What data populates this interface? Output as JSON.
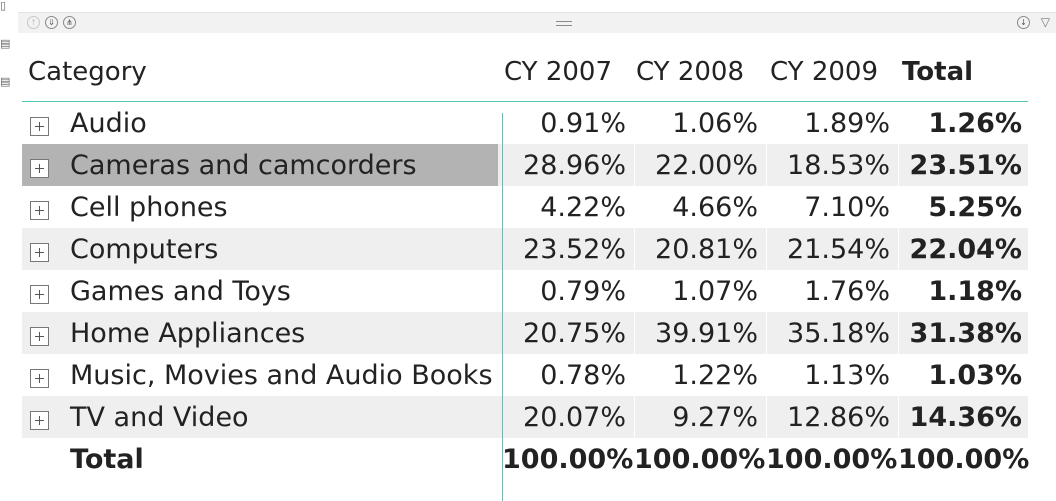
{
  "matrix": {
    "header": {
      "category": "Category",
      "columns": [
        "CY 2007",
        "CY 2008",
        "CY 2009"
      ],
      "total": "Total"
    },
    "rows": [
      {
        "label": "Audio",
        "values": [
          "0.91%",
          "1.06%",
          "1.89%"
        ],
        "total": "1.26%"
      },
      {
        "label": "Cameras and camcorders",
        "values": [
          "28.96%",
          "22.00%",
          "18.53%"
        ],
        "total": "23.51%"
      },
      {
        "label": "Cell phones",
        "values": [
          "4.22%",
          "4.66%",
          "7.10%"
        ],
        "total": "5.25%"
      },
      {
        "label": "Computers",
        "values": [
          "23.52%",
          "20.81%",
          "21.54%"
        ],
        "total": "22.04%"
      },
      {
        "label": "Games and Toys",
        "values": [
          "0.79%",
          "1.07%",
          "1.76%"
        ],
        "total": "1.18%"
      },
      {
        "label": "Home Appliances",
        "values": [
          "20.75%",
          "39.91%",
          "35.18%"
        ],
        "total": "31.38%"
      },
      {
        "label": "Music, Movies and Audio Books",
        "values": [
          "0.78%",
          "1.22%",
          "1.13%"
        ],
        "total": "1.03%"
      },
      {
        "label": "TV and Video",
        "values": [
          "20.07%",
          "9.27%",
          "12.86%"
        ],
        "total": "14.36%"
      }
    ],
    "total_row": {
      "label": "Total",
      "values": [
        "100.00%",
        "100.00%",
        "100.00%"
      ],
      "total": "100.00%"
    },
    "selected_row": 1
  },
  "colors": {
    "accent": "#4ec9b8",
    "selected": "#b3b3b3",
    "alt_row": "#efefef"
  },
  "icons": [
    "drill-up-icon",
    "drill-down-icon",
    "expand-all-icon",
    "drill-mode-icon",
    "filter-icon",
    "grip-icon",
    "expand-row-icon"
  ]
}
